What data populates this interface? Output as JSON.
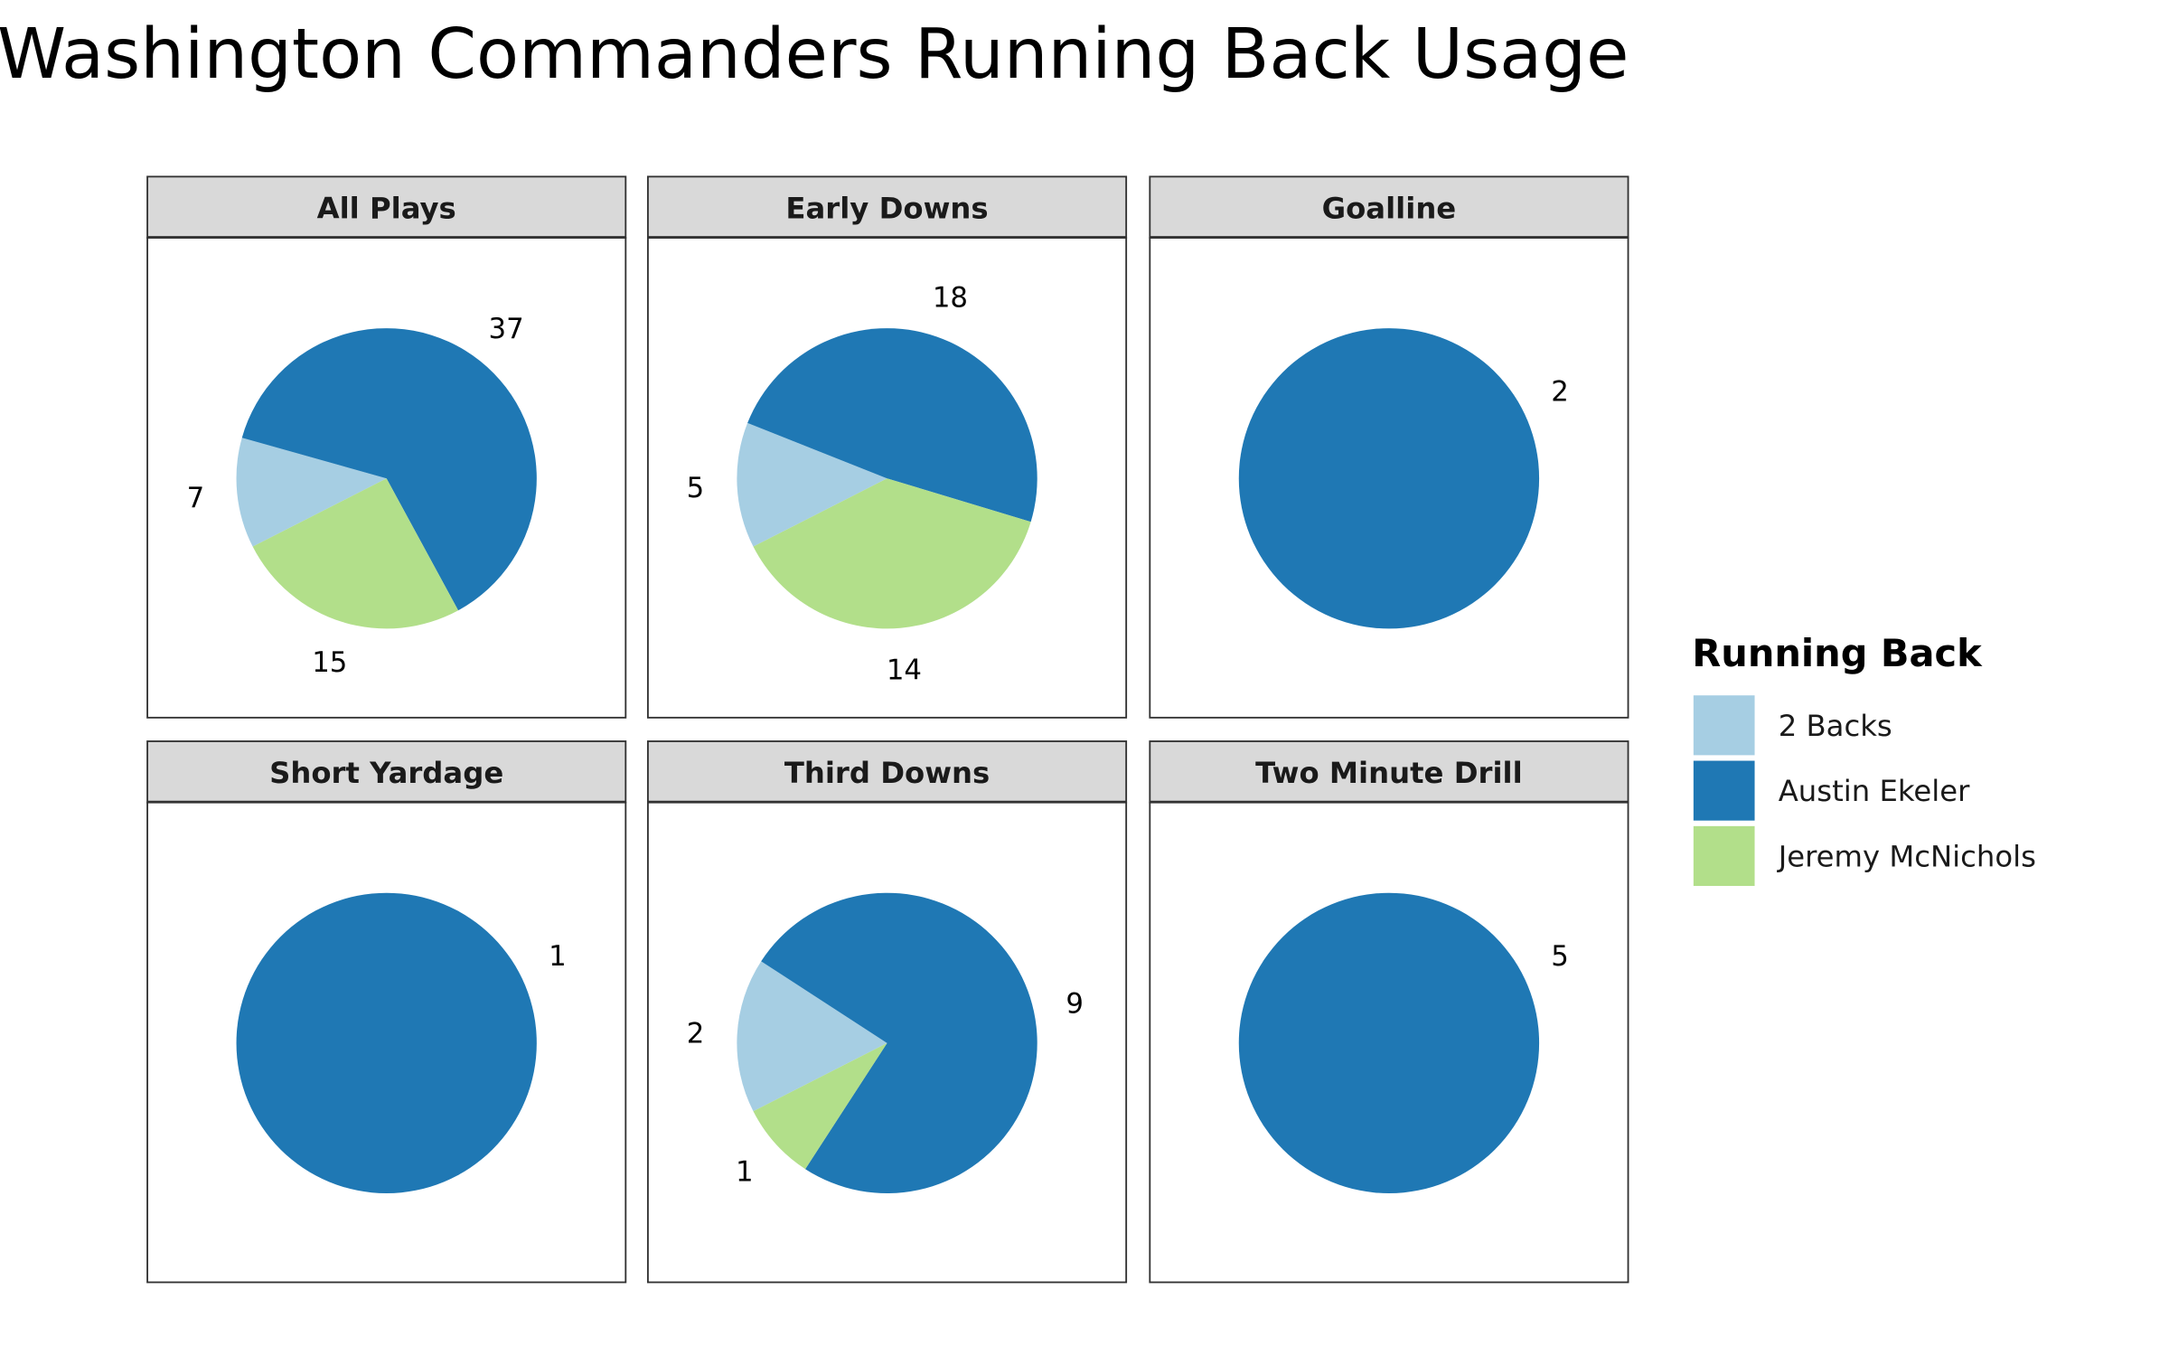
{
  "chart_data": {
    "type": "pie",
    "title": "Washington Commanders Running Back Usage",
    "legend": {
      "title": "Running Back",
      "placement": "right",
      "entries": [
        "2 Backs",
        "Austin Ekeler",
        "Jeremy McNichols"
      ]
    },
    "colors": {
      "2 Backs": "#a6cee3",
      "Austin Ekeler": "#1f78b4",
      "Jeremy McNichols": "#b2df8a"
    },
    "panels": [
      {
        "title": "All Plays",
        "slices": [
          {
            "name": "2 Backs",
            "value": 7
          },
          {
            "name": "Austin Ekeler",
            "value": 37
          },
          {
            "name": "Jeremy McNichols",
            "value": 15
          }
        ]
      },
      {
        "title": "Early Downs",
        "slices": [
          {
            "name": "2 Backs",
            "value": 5
          },
          {
            "name": "Austin Ekeler",
            "value": 18
          },
          {
            "name": "Jeremy McNichols",
            "value": 14
          }
        ]
      },
      {
        "title": "Goalline",
        "slices": [
          {
            "name": "Austin Ekeler",
            "value": 2
          }
        ]
      },
      {
        "title": "Short Yardage",
        "slices": [
          {
            "name": "Austin Ekeler",
            "value": 1
          }
        ]
      },
      {
        "title": "Third Downs",
        "slices": [
          {
            "name": "2 Backs",
            "value": 2
          },
          {
            "name": "Austin Ekeler",
            "value": 9
          },
          {
            "name": "Jeremy McNichols",
            "value": 1
          }
        ]
      },
      {
        "title": "Two Minute Drill",
        "slices": [
          {
            "name": "Austin Ekeler",
            "value": 5
          }
        ]
      }
    ]
  }
}
